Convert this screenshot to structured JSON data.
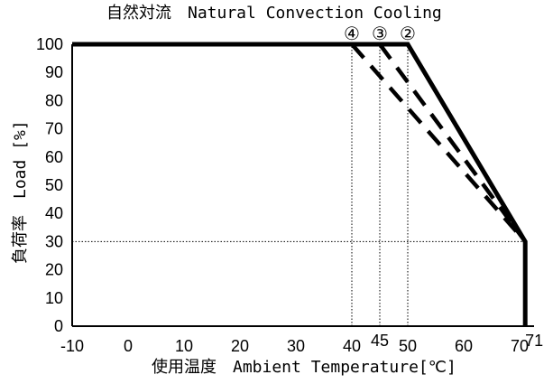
{
  "chart_data": {
    "type": "line",
    "title": "自然対流　Natural Convection Cooling",
    "xlabel": "使用温度　Ambient Temperature[℃]",
    "ylabel": "負荷率　Load [%]",
    "xlim": [
      -10,
      71
    ],
    "ylim": [
      0,
      100
    ],
    "xticks": [
      "-10",
      "0",
      "10",
      "20",
      "30",
      "40",
      "50",
      "60",
      "70"
    ],
    "xticks_extra": [
      "45",
      "71"
    ],
    "yticks": [
      "0",
      "10",
      "20",
      "30",
      "40",
      "50",
      "60",
      "70",
      "80",
      "90",
      "100"
    ],
    "grid": false,
    "series": [
      {
        "name": "②",
        "style": "solid",
        "x": [
          -10,
          50,
          71,
          71
        ],
        "y": [
          100,
          100,
          30,
          0
        ]
      },
      {
        "name": "③",
        "style": "dashed",
        "x": [
          45,
          71
        ],
        "y": [
          100,
          30
        ]
      },
      {
        "name": "④",
        "style": "dashed",
        "x": [
          40,
          71
        ],
        "y": [
          100,
          30
        ]
      }
    ],
    "reference_lines": [
      {
        "axis": "x",
        "value": 40
      },
      {
        "axis": "x",
        "value": 45
      },
      {
        "axis": "x",
        "value": 50
      },
      {
        "axis": "y",
        "value": 30
      }
    ]
  }
}
